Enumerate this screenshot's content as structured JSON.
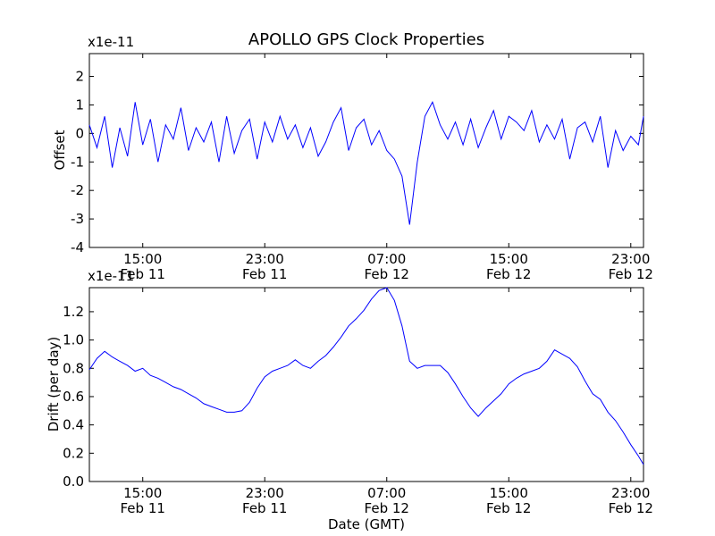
{
  "title": "APOLLO GPS Clock Properties",
  "chart_data": [
    {
      "type": "line",
      "name": "offset",
      "ylabel": "Offset",
      "scale_label": "x1e-11",
      "xlim": [
        "2011-02-11 11:30",
        "2011-02-12 23:50"
      ],
      "ylim": [
        -4,
        2.8
      ],
      "yticks": [
        {
          "value": -4,
          "label": "-4"
        },
        {
          "value": -3,
          "label": "-3"
        },
        {
          "value": -2,
          "label": "-2"
        },
        {
          "value": -1,
          "label": "-1"
        },
        {
          "value": 0,
          "label": "0"
        },
        {
          "value": 1,
          "label": "1"
        },
        {
          "value": 2,
          "label": "2"
        }
      ],
      "xticks": [
        {
          "value": "2011-02-11 15:00",
          "label": "15:00",
          "sublabel": "Feb 11"
        },
        {
          "value": "2011-02-11 23:00",
          "label": "23:00",
          "sublabel": "Feb 11"
        },
        {
          "value": "2011-02-12 07:00",
          "label": "07:00",
          "sublabel": "Feb 12"
        },
        {
          "value": "2011-02-12 15:00",
          "label": "15:00",
          "sublabel": "Feb 12"
        },
        {
          "value": "2011-02-12 23:00",
          "label": "23:00",
          "sublabel": "Feb 12"
        }
      ],
      "x": [
        "2011-02-11 11:30",
        "2011-02-11 12:00",
        "2011-02-11 12:30",
        "2011-02-11 13:00",
        "2011-02-11 13:30",
        "2011-02-11 14:00",
        "2011-02-11 14:30",
        "2011-02-11 15:00",
        "2011-02-11 15:30",
        "2011-02-11 16:00",
        "2011-02-11 16:30",
        "2011-02-11 17:00",
        "2011-02-11 17:30",
        "2011-02-11 18:00",
        "2011-02-11 18:30",
        "2011-02-11 19:00",
        "2011-02-11 19:30",
        "2011-02-11 20:00",
        "2011-02-11 20:30",
        "2011-02-11 21:00",
        "2011-02-11 21:30",
        "2011-02-11 22:00",
        "2011-02-11 22:30",
        "2011-02-11 23:00",
        "2011-02-11 23:30",
        "2011-02-12 00:00",
        "2011-02-12 00:30",
        "2011-02-12 01:00",
        "2011-02-12 01:30",
        "2011-02-12 02:00",
        "2011-02-12 02:30",
        "2011-02-12 03:00",
        "2011-02-12 03:30",
        "2011-02-12 04:00",
        "2011-02-12 04:30",
        "2011-02-12 05:00",
        "2011-02-12 05:30",
        "2011-02-12 06:00",
        "2011-02-12 06:30",
        "2011-02-12 07:00",
        "2011-02-12 07:30",
        "2011-02-12 08:00",
        "2011-02-12 08:30",
        "2011-02-12 09:00",
        "2011-02-12 09:30",
        "2011-02-12 10:00",
        "2011-02-12 10:30",
        "2011-02-12 11:00",
        "2011-02-12 11:30",
        "2011-02-12 12:00",
        "2011-02-12 12:30",
        "2011-02-12 13:00",
        "2011-02-12 13:30",
        "2011-02-12 14:00",
        "2011-02-12 14:30",
        "2011-02-12 15:00",
        "2011-02-12 15:30",
        "2011-02-12 16:00",
        "2011-02-12 16:30",
        "2011-02-12 17:00",
        "2011-02-12 17:30",
        "2011-02-12 18:00",
        "2011-02-12 18:30",
        "2011-02-12 19:00",
        "2011-02-12 19:30",
        "2011-02-12 20:00",
        "2011-02-12 20:30",
        "2011-02-12 21:00",
        "2011-02-12 21:30",
        "2011-02-12 22:00",
        "2011-02-12 22:30",
        "2011-02-12 23:00",
        "2011-02-12 23:30",
        "2011-02-12 23:50"
      ],
      "values": [
        0.3,
        -0.5,
        0.6,
        -1.2,
        0.2,
        -0.8,
        1.1,
        -0.4,
        0.5,
        -1.0,
        0.3,
        -0.2,
        0.9,
        -0.6,
        0.2,
        -0.3,
        0.4,
        -1.0,
        0.6,
        -0.7,
        0.1,
        0.5,
        -0.9,
        0.4,
        -0.3,
        0.6,
        -0.2,
        0.3,
        -0.5,
        0.2,
        -0.8,
        -0.3,
        0.4,
        0.9,
        -0.6,
        0.2,
        0.5,
        -0.4,
        0.1,
        -0.6,
        -0.9,
        -1.5,
        -3.2,
        -1.0,
        0.6,
        1.1,
        0.3,
        -0.2,
        0.4,
        -0.4,
        0.5,
        -0.5,
        0.2,
        0.8,
        -0.2,
        0.6,
        0.4,
        0.1,
        0.8,
        -0.3,
        0.3,
        -0.2,
        0.5,
        -0.9,
        0.2,
        0.4,
        -0.3,
        0.6,
        -1.2,
        0.1,
        -0.6,
        -0.1,
        -0.4,
        0.6
      ]
    },
    {
      "type": "line",
      "name": "drift",
      "ylabel": "Drift (per day)",
      "xlabel": "Date (GMT)",
      "scale_label": "x1e-11",
      "xlim": [
        "2011-02-11 11:30",
        "2011-02-12 23:50"
      ],
      "ylim": [
        0,
        1.37
      ],
      "yticks": [
        {
          "value": 0.0,
          "label": "0.0"
        },
        {
          "value": 0.2,
          "label": "0.2"
        },
        {
          "value": 0.4,
          "label": "0.4"
        },
        {
          "value": 0.6,
          "label": "0.6"
        },
        {
          "value": 0.8,
          "label": "0.8"
        },
        {
          "value": 1.0,
          "label": "1.0"
        },
        {
          "value": 1.2,
          "label": "1.2"
        }
      ],
      "xticks": [
        {
          "value": "2011-02-11 15:00",
          "label": "15:00",
          "sublabel": "Feb 11"
        },
        {
          "value": "2011-02-11 23:00",
          "label": "23:00",
          "sublabel": "Feb 11"
        },
        {
          "value": "2011-02-12 07:00",
          "label": "07:00",
          "sublabel": "Feb 12"
        },
        {
          "value": "2011-02-12 15:00",
          "label": "15:00",
          "sublabel": "Feb 12"
        },
        {
          "value": "2011-02-12 23:00",
          "label": "23:00",
          "sublabel": "Feb 12"
        }
      ],
      "x": [
        "2011-02-11 11:30",
        "2011-02-11 12:00",
        "2011-02-11 12:30",
        "2011-02-11 13:00",
        "2011-02-11 13:30",
        "2011-02-11 14:00",
        "2011-02-11 14:30",
        "2011-02-11 15:00",
        "2011-02-11 15:30",
        "2011-02-11 16:00",
        "2011-02-11 16:30",
        "2011-02-11 17:00",
        "2011-02-11 17:30",
        "2011-02-11 18:00",
        "2011-02-11 18:30",
        "2011-02-11 19:00",
        "2011-02-11 19:30",
        "2011-02-11 20:00",
        "2011-02-11 20:30",
        "2011-02-11 21:00",
        "2011-02-11 21:30",
        "2011-02-11 22:00",
        "2011-02-11 22:30",
        "2011-02-11 23:00",
        "2011-02-11 23:30",
        "2011-02-12 00:00",
        "2011-02-12 00:30",
        "2011-02-12 01:00",
        "2011-02-12 01:30",
        "2011-02-12 02:00",
        "2011-02-12 02:30",
        "2011-02-12 03:00",
        "2011-02-12 03:30",
        "2011-02-12 04:00",
        "2011-02-12 04:30",
        "2011-02-12 05:00",
        "2011-02-12 05:30",
        "2011-02-12 06:00",
        "2011-02-12 06:30",
        "2011-02-12 07:00",
        "2011-02-12 07:30",
        "2011-02-12 08:00",
        "2011-02-12 08:30",
        "2011-02-12 09:00",
        "2011-02-12 09:30",
        "2011-02-12 10:00",
        "2011-02-12 10:30",
        "2011-02-12 11:00",
        "2011-02-12 11:30",
        "2011-02-12 12:00",
        "2011-02-12 12:30",
        "2011-02-12 13:00",
        "2011-02-12 13:30",
        "2011-02-12 14:00",
        "2011-02-12 14:30",
        "2011-02-12 15:00",
        "2011-02-12 15:30",
        "2011-02-12 16:00",
        "2011-02-12 16:30",
        "2011-02-12 17:00",
        "2011-02-12 17:30",
        "2011-02-12 18:00",
        "2011-02-12 18:30",
        "2011-02-12 19:00",
        "2011-02-12 19:30",
        "2011-02-12 20:00",
        "2011-02-12 20:30",
        "2011-02-12 21:00",
        "2011-02-12 21:30",
        "2011-02-12 22:00",
        "2011-02-12 22:30",
        "2011-02-12 23:00",
        "2011-02-12 23:30",
        "2011-02-12 23:50"
      ],
      "values": [
        0.79,
        0.87,
        0.92,
        0.88,
        0.85,
        0.82,
        0.78,
        0.8,
        0.75,
        0.73,
        0.7,
        0.67,
        0.65,
        0.62,
        0.59,
        0.55,
        0.53,
        0.51,
        0.49,
        0.49,
        0.5,
        0.56,
        0.66,
        0.74,
        0.78,
        0.8,
        0.82,
        0.86,
        0.82,
        0.8,
        0.85,
        0.89,
        0.95,
        1.02,
        1.1,
        1.15,
        1.21,
        1.29,
        1.35,
        1.37,
        1.28,
        1.1,
        0.85,
        0.8,
        0.82,
        0.82,
        0.82,
        0.77,
        0.69,
        0.6,
        0.52,
        0.46,
        0.52,
        0.57,
        0.62,
        0.69,
        0.73,
        0.76,
        0.78,
        0.8,
        0.85,
        0.93,
        0.9,
        0.87,
        0.81,
        0.71,
        0.62,
        0.58,
        0.49,
        0.43,
        0.35,
        0.26,
        0.18,
        0.12
      ]
    }
  ]
}
